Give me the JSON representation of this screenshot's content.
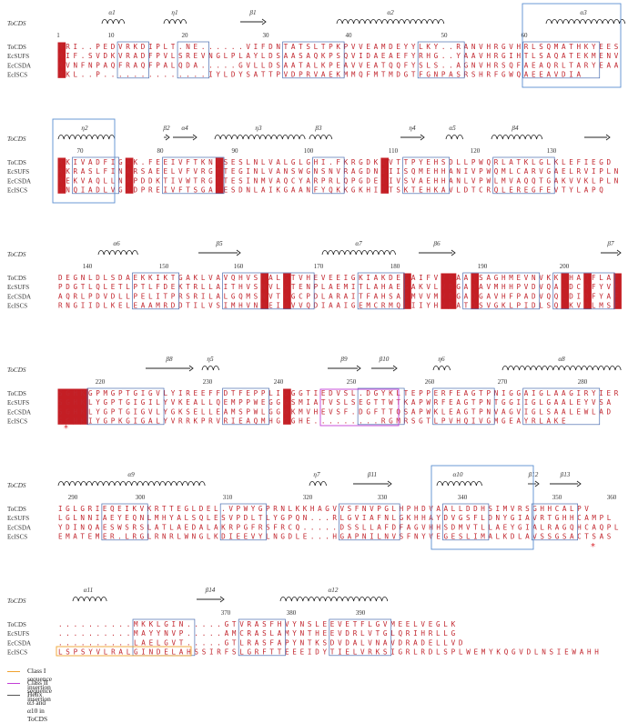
{
  "blocks": [
    {
      "numbers": [
        "1",
        "10",
        "20",
        "30",
        "40",
        "50",
        "60"
      ],
      "ss": [
        "α1",
        "η1",
        "β1",
        "α2",
        "α3"
      ],
      "rows": [
        {
          "name": "ToCDS",
          "seq": "MRI..PEDVRKDIPLT.NE......VIFDNTATSLTPKPVVEAMDEYYLKY..RANVHRGVHRLSQMATHKYEES"
        },
        {
          "name": "EcSUFS",
          "seq": "MIF.SVDKVRADFPVLSREVNGLPLAYLDSAASAQKPSQVIDAEAEFYRHG..YAAVHRGIHTLSAQATEKMENV"
        },
        {
          "name": "EcCSDA",
          "seq": "MVNFNPAQFRAQFPALQDA.....GVLLDSAATALKPEAVVEATQQFYSLS..AGNVHRSQFAEAQRLTARYEAA"
        },
        {
          "name": "EcISCS",
          "seq": "MKL..P..............IYLDYSATTPVDPRVAEKMMQFMTMDGTFGNPASRSHRFGWQAEEAVDIA"
        }
      ]
    },
    {
      "numbers": [
        "70",
        "80",
        "90",
        "100",
        "110",
        "120",
        "130"
      ],
      "ss": [
        "η2",
        "β2",
        "α4",
        "η3",
        "β3",
        "η4",
        "α5",
        "β4"
      ],
      "rows": [
        {
          "name": "ToCDS",
          "seq": "RKIVADFIGAK.FEEIVFTKNTSESLNLVALGLGHI.FKRGDKIVTTPYEHSDLLPWQRLATKLGLKLEFIEGD"
        },
        {
          "name": "EcSUFS",
          "seq": "RKRASLFINARSAEELVFVRGTTEGINLVANSWGNSNVRAGDNIIISQMEHHANIVPWQMLCARVGAELRVIPLN"
        },
        {
          "name": "EcCSDA",
          "seq": "REKVAQLLNAPDDKTIVWTRGTTESINMVAQCYARPRLQPGDEIIVSVAEHHANLVPWLMVAQQTGAKVVKLPLN"
        },
        {
          "name": "EcISCS",
          "seq": "RNQIADLVGADPREIVFTSGATESDNLAIKGAANFYQKKGKHIITSKTEHKAVLDTCRQLEREGFEVTYLAPQ"
        }
      ]
    },
    {
      "numbers": [
        "140",
        "150",
        "160",
        "170",
        "180",
        "190",
        "200"
      ],
      "ss": [
        "α6",
        "β5",
        "α7",
        "β6",
        "β7"
      ],
      "rows": [
        {
          "name": "ToCDS",
          "seq": "DEGNLDLSDAEKKIKTGAKLVAVQHVSNALGTVHEVEEIGKIAKDEGAIFVVDAAQSAGHMEVNVKKLHADFLAF"
        },
        {
          "name": "EcSUFS",
          "seq": "PDGTLQLETLPTLFDEKTRLLAITHVSNVLGTENPLAEMITLAHAEGAKVLVDGAQAVMHHPVDVQALDCDFYVF"
        },
        {
          "name": "EcCSDA",
          "seq": "AQRLPDVDLLPELITPRSRILALGQMSNVTGGCPDLARAITFAHSAGMVVMVDGAQGAVHFPADVQQLDIDFYAF"
        },
        {
          "name": "EcISCS",
          "seq": "RNGIIDLKELEAAMRDDTILVSIMHVNNEIGVVQDIAAIGEMCRMQGIIYHVDATQSVGKLPIDLSQLKVDLMSF"
        }
      ]
    },
    {
      "numbers": [
        "220",
        "230",
        "240",
        "250",
        "260",
        "270",
        "280"
      ],
      "ss": [
        "β8",
        "η5",
        "β9",
        "β10",
        "η6",
        "α8"
      ],
      "rows": [
        {
          "name": "ToCDS",
          "seq": "SGHKGPMGPTGIGVLYIREEFFDTFEPPLIGGGTIEDVSL.DGYKLTEPPERFEAGTPNIGGAIGLAAGIRYIER"
        },
        {
          "name": "EcSUFS",
          "seq": "SGHKLYGPTGIGILYVKEALLQEMPPWEGGGSMIATVSLSEGTTWTKAPWRFEAGTPNTGGIIGLGAALEYVSA"
        },
        {
          "name": "EcCSDA",
          "seq": "SGHKLYGPTGIGVLYGKSELLEAMSPWLGGGKMVHEVSF.DGFTTQSAPWKLEAGTPNVAGVIGLSAALEWLAD"
        },
        {
          "name": "EcISCS",
          "seq": "SGHKIYGPKGIGALYVRRKPRVRIEAQMHGGGHE.........RGMRSGTLPVHQIVGMGEAYRLAKE"
        }
      ]
    },
    {
      "numbers": [
        "290",
        "300",
        "310",
        "320",
        "330",
        "340",
        "350",
        "360"
      ],
      "ss": [
        "α9",
        "η7",
        "β11",
        "α10",
        "β12",
        "β13"
      ],
      "rows": [
        {
          "name": "ToCDS",
          "seq": "IGLGRIEQEIKVKRTTEGLDEL.VPWYGPRNLKKHAGVVSFNVPGLHPHDVAALLDDHSIMVRSGHHCALPV"
        },
        {
          "name": "EcSUFS",
          "seq": "LGLNNIAEYEQNLMHYALSQLESVPDLTLYGPQN...RLGVIAFNLGKHHAYDVGSFLDNYGIAVRTGHHCAMPL"
        },
        {
          "name": "EcCSDA",
          "seq": "YDINQAESWSRSLATLAEDALAKRPGFRSFRCQ.....DSSLLAFDFAGVHHSDMVTLLAEYGIALRAGQHCAQPL"
        },
        {
          "name": "EcISCS",
          "seq": "EMATEMER.LRGLRNRLWNGLKDIEEVYLNGDLE...HGAPNILNVSFNYVEGESLIMALKDLAVSSGSACTSAS"
        }
      ]
    },
    {
      "numbers": [
        "370",
        "380",
        "390"
      ],
      "ss": [
        "α11",
        "β14",
        "α12"
      ],
      "rows": [
        {
          "name": "ToCDS",
          "seq": "..........MKKLGIN.....GTVRASFHVYNSLEEVETFLGVMEELVEGLK"
        },
        {
          "name": "EcSUFS",
          "seq": "..........MAYYNVP.....AMCRASLAMYNTHEEVDRLVTGLQRIHRLLG"
        },
        {
          "name": "EcCSDA",
          "seq": "..........LAELGVT.....GTLRASFAPYNTKSDVDALVNAVDRADELLVD"
        },
        {
          "name": "EcISCS",
          "seq": "LSPSYVLRALGINDELAHSSIRFSLGRFTTEEEIDYTIELVRKSIGRLRDLSPLWEMYKQGVDLNSIEWAHH"
        }
      ]
    }
  ],
  "legend": [
    {
      "label": "Class I sequence insertion",
      "color": "#f0a22e"
    },
    {
      "label": "Class II sequence insertion",
      "color": "#c23fd6"
    },
    {
      "label": "Helix α3 and α10 in ToCDS",
      "color": "#5b8fd0"
    }
  ],
  "colors": {
    "conserved_bg": "#c41e24",
    "similar_text": "#c2262e",
    "box": "#4a6db0",
    "star": "#d9232b"
  }
}
